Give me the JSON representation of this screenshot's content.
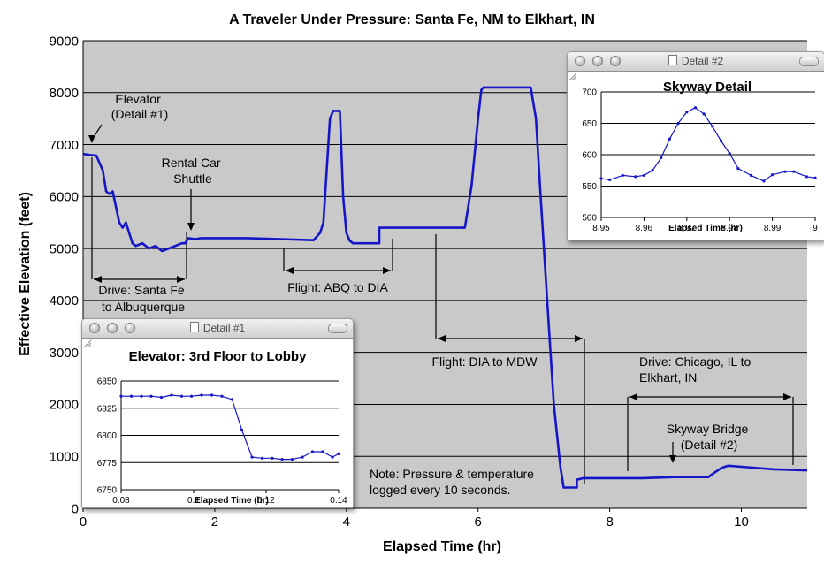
{
  "colors": {
    "series": "#1515c8",
    "plot_bg": "#c9c9c9",
    "grid": "#000000",
    "arrow": "#000000"
  },
  "main": {
    "title": "A Traveler Under Pressure: Santa Fe, NM to Elkhart, IN",
    "xlabel": "Elapsed Time (hr)",
    "ylabel": "Effective Elevation (feet)",
    "note": [
      "Note: Pressure & temperature",
      "logged every 10 seconds."
    ]
  },
  "annotations": [
    {
      "id": "elevator",
      "lines": [
        "Elevator",
        "(Detail #1)"
      ]
    },
    {
      "id": "rental",
      "lines": [
        "Rental Car",
        "Shuttle"
      ]
    },
    {
      "id": "drive-sf",
      "lines": [
        "Drive: Santa Fe",
        "to Albuquerque"
      ]
    },
    {
      "id": "flight-abq",
      "lines": [
        "Flight: ABQ to DIA"
      ]
    },
    {
      "id": "flight-dia",
      "lines": [
        "Flight: DIA to MDW"
      ]
    },
    {
      "id": "drive-chi",
      "lines": [
        "Drive: Chicago, IL to",
        "Elkhart, IN"
      ]
    },
    {
      "id": "skyway",
      "lines": [
        "Skyway Bridge",
        "(Detail #2)"
      ]
    }
  ],
  "windows": {
    "detail1": {
      "title": "Detail #1"
    },
    "detail2": {
      "title": "Detail #2"
    }
  },
  "chart_data": [
    {
      "type": "line",
      "title": "A Traveler Under Pressure: Santa Fe, NM to Elkhart, IN",
      "xlabel": "Elapsed Time (hr)",
      "ylabel": "Effective Elevation (feet)",
      "xlim": [
        0,
        11
      ],
      "ylim": [
        0,
        9000
      ],
      "xticks": [
        0,
        2,
        4,
        6,
        8,
        10
      ],
      "yticks": [
        0,
        1000,
        2000,
        3000,
        4000,
        5000,
        6000,
        7000,
        8000,
        9000
      ],
      "grid": "horizontal",
      "series": [
        {
          "x": [
            0,
            0.1,
            0.2,
            0.3,
            0.35,
            0.4,
            0.45,
            0.5,
            0.55,
            0.6,
            0.65,
            0.7,
            0.75,
            0.8,
            0.9,
            1.0,
            1.1,
            1.2,
            1.3,
            1.4,
            1.5,
            1.55,
            1.6,
            1.7,
            1.8,
            2.0,
            2.5,
            3.0,
            3.5,
            3.6,
            3.65,
            3.7,
            3.75,
            3.8,
            3.85,
            3.9,
            3.95,
            4.0,
            4.05,
            4.1,
            4.2,
            4.3,
            4.4,
            4.5,
            4.5,
            4.6,
            5.0,
            5.5,
            5.8,
            5.9,
            6.0,
            6.05,
            6.08,
            6.1,
            6.3,
            6.5,
            6.8,
            6.88,
            6.95,
            7.05,
            7.15,
            7.25,
            7.3,
            7.35,
            7.5,
            7.5,
            7.6,
            7.8,
            8.0,
            8.5,
            9.0,
            9.5,
            9.55,
            9.7,
            9.8,
            10.0,
            10.5,
            11.0
          ],
          "y": [
            6820,
            6800,
            6790,
            6500,
            6100,
            6050,
            6100,
            5800,
            5500,
            5400,
            5500,
            5300,
            5100,
            5050,
            5100,
            5000,
            5050,
            4950,
            5000,
            5050,
            5100,
            5100,
            5200,
            5180,
            5200,
            5200,
            5200,
            5180,
            5160,
            5300,
            5500,
            6500,
            7500,
            7650,
            7650,
            7650,
            6000,
            5300,
            5150,
            5100,
            5100,
            5100,
            5100,
            5100,
            5400,
            5400,
            5400,
            5400,
            5400,
            6200,
            7500,
            8050,
            8100,
            8100,
            8100,
            8100,
            8100,
            7500,
            6000,
            4000,
            2000,
            800,
            400,
            400,
            400,
            550,
            580,
            580,
            580,
            580,
            600,
            600,
            650,
            780,
            820,
            800,
            750,
            730
          ]
        }
      ]
    },
    {
      "type": "line",
      "title": "Elevator: 3rd Floor to Lobby",
      "xlabel": "Elapsed Time (hr)",
      "xlim": [
        0.08,
        0.14
      ],
      "ylim": [
        6750,
        6850
      ],
      "xticks": [
        0.08,
        0.1,
        0.12,
        0.14
      ],
      "yticks": [
        6750,
        6775,
        6800,
        6825,
        6850
      ],
      "series": [
        {
          "x": [
            0.08,
            0.0828,
            0.0856,
            0.0883,
            0.0911,
            0.0939,
            0.0967,
            0.0994,
            0.1022,
            0.105,
            0.1078,
            0.1106,
            0.1133,
            0.1161,
            0.1189,
            0.1217,
            0.1244,
            0.1272,
            0.13,
            0.1328,
            0.1356,
            0.1383,
            0.14
          ],
          "y": [
            6836,
            6836,
            6836,
            6836,
            6835,
            6837,
            6836,
            6836,
            6837,
            6837,
            6836,
            6833,
            6805,
            6780,
            6779,
            6779,
            6778,
            6778,
            6780,
            6785,
            6785,
            6780,
            6783
          ]
        }
      ]
    },
    {
      "type": "line",
      "title": "Skyway Detail",
      "xlabel": "Elapsed Time (hr)",
      "xlim": [
        8.95,
        9
      ],
      "ylim": [
        500,
        700
      ],
      "xticks": [
        8.95,
        8.96,
        8.97,
        8.98,
        8.99,
        9
      ],
      "yticks": [
        500,
        550,
        600,
        650,
        700
      ],
      "series": [
        {
          "x": [
            8.95,
            8.952,
            8.955,
            8.958,
            8.96,
            8.962,
            8.964,
            8.966,
            8.968,
            8.97,
            8.972,
            8.974,
            8.976,
            8.978,
            8.98,
            8.982,
            8.985,
            8.988,
            8.99,
            8.993,
            8.995,
            8.998,
            9.0
          ],
          "y": [
            562,
            560,
            567,
            565,
            567,
            575,
            595,
            625,
            650,
            668,
            675,
            665,
            645,
            622,
            602,
            578,
            567,
            558,
            568,
            573,
            573,
            565,
            563
          ]
        }
      ]
    }
  ]
}
